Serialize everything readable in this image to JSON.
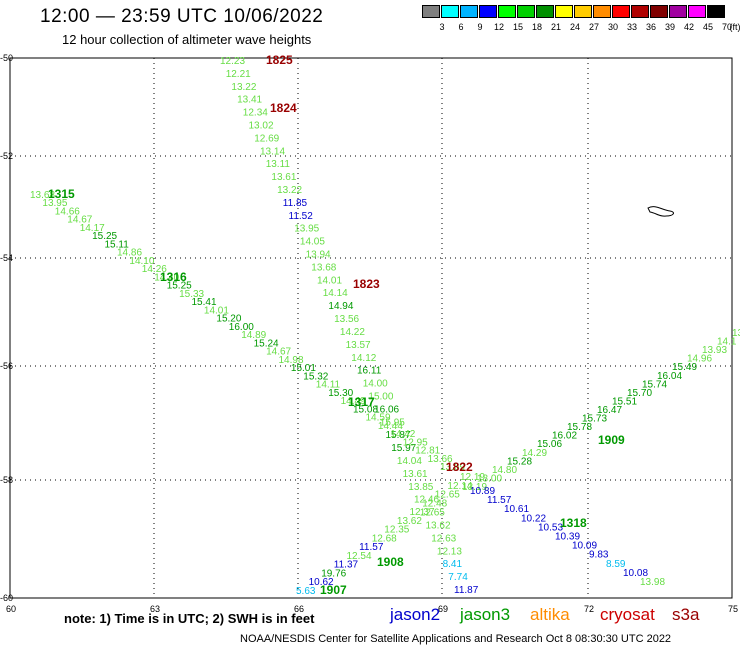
{
  "header": {
    "title": "12:00 — 23:59 UTC 10/06/2022",
    "subtitle": "12 hour collection of altimeter wave heights"
  },
  "legend": {
    "levels": [
      "3",
      "6",
      "9",
      "12",
      "15",
      "18",
      "21",
      "24",
      "27",
      "30",
      "33",
      "36",
      "39",
      "42",
      "45",
      "70"
    ],
    "unit": "(ft)",
    "colors": [
      "#7f7f7f",
      "#00ffff",
      "#00b4ff",
      "#0000ff",
      "#00ff00",
      "#00d000",
      "#009000",
      "#ffff00",
      "#ffcc00",
      "#ff8c00",
      "#ff0000",
      "#b00000",
      "#800000",
      "#a000a0",
      "#ff00ff",
      "#000000"
    ]
  },
  "map": {
    "x_ticks": [
      "60",
      "63",
      "66",
      "69",
      "72",
      "75"
    ],
    "y_ticks": [
      "-50",
      "-52",
      "-54",
      "-56",
      "-58",
      "-60"
    ],
    "colors": {
      "jason2": "#0000cc",
      "jason3": "#009900",
      "altika": "#ff8c00",
      "cryosat": "#cc0000",
      "s3a": "#990000",
      "light_green": "#66dd44",
      "cyan": "#00bbee"
    }
  },
  "tracks": [
    {
      "pass": "1825",
      "label_color": "#990000",
      "label_x": 266,
      "label_y": 64,
      "x0": 220,
      "y0": 64,
      "x1": 454,
      "y1": 593,
      "readings": [
        [
          "12.23",
          "light_green"
        ],
        [
          "12.21",
          "light_green"
        ],
        [
          "13.22",
          "light_green"
        ],
        [
          "13.41",
          "light_green"
        ],
        [
          "12.34",
          "light_green"
        ],
        [
          "13.02",
          "light_green"
        ],
        [
          "12.69",
          "light_green"
        ],
        [
          "13.14",
          "light_green"
        ],
        [
          "13.11",
          "light_green"
        ],
        [
          "13.61",
          "light_green"
        ],
        [
          "13.22",
          "light_green"
        ],
        [
          "11.85",
          "jason2"
        ],
        [
          "11.52",
          "jason2"
        ],
        [
          "13.95",
          "light_green"
        ],
        [
          "14.05",
          "light_green"
        ],
        [
          "13.94",
          "light_green"
        ],
        [
          "13.68",
          "light_green"
        ],
        [
          "14.01",
          "light_green"
        ],
        [
          "14.14",
          "light_green"
        ],
        [
          "14.94",
          "jason3"
        ],
        [
          "13.56",
          "light_green"
        ],
        [
          "14.22",
          "light_green"
        ],
        [
          "13.57",
          "light_green"
        ],
        [
          "14.12",
          "light_green"
        ],
        [
          "16.11",
          "jason3"
        ],
        [
          "14.00",
          "light_green"
        ],
        [
          "15.00",
          "light_green"
        ],
        [
          "16.06",
          "jason3"
        ],
        [
          "15.95",
          "light_green"
        ],
        [
          "15.87",
          "jason3"
        ],
        [
          "15.97",
          "jason3"
        ],
        [
          "14.04",
          "light_green"
        ],
        [
          "13.61",
          "light_green"
        ],
        [
          "13.85",
          "light_green"
        ],
        [
          "12.46",
          "light_green"
        ],
        [
          "12.65",
          "light_green"
        ],
        [
          "13.62",
          "light_green"
        ],
        [
          "12.63",
          "light_green"
        ],
        [
          "12.13",
          "light_green"
        ],
        [
          "8.41",
          "cyan"
        ],
        [
          "7.74",
          "cyan"
        ],
        [
          "11.87",
          "jason2"
        ]
      ]
    },
    {
      "pass": "1315",
      "label_color": "#009900",
      "label_x": 48,
      "label_y": 198,
      "x0": 30,
      "y0": 198,
      "x1": 440,
      "y1": 470,
      "readings": [
        [
          "13.68",
          "light_green"
        ],
        [
          "13.95",
          "light_green"
        ],
        [
          "14.66",
          "light_green"
        ],
        [
          "14.67",
          "light_green"
        ],
        [
          "14.17",
          "light_green"
        ],
        [
          "15.25",
          "jason3"
        ],
        [
          "15.11",
          "jason3"
        ],
        [
          "14.86",
          "light_green"
        ],
        [
          "14.10",
          "light_green"
        ],
        [
          "14.26",
          "light_green"
        ],
        [
          "14.40",
          "light_green"
        ],
        [
          "15.25",
          "jason3"
        ],
        [
          "15.33",
          "light_green"
        ],
        [
          "15.41",
          "jason3"
        ],
        [
          "14.01",
          "light_green"
        ],
        [
          "15.20",
          "jason3"
        ],
        [
          "16.00",
          "jason3"
        ],
        [
          "14.89",
          "light_green"
        ],
        [
          "15.24",
          "jason3"
        ],
        [
          "14.67",
          "light_green"
        ],
        [
          "14.98",
          "light_green"
        ],
        [
          "15.01",
          "jason3"
        ],
        [
          "15.32",
          "jason3"
        ],
        [
          "14.11",
          "light_green"
        ],
        [
          "15.30",
          "jason3"
        ],
        [
          "14.49",
          "light_green"
        ],
        [
          "15.08",
          "jason3"
        ],
        [
          "14.59",
          "light_green"
        ],
        [
          "14.44",
          "light_green"
        ],
        [
          "14.42",
          "light_green"
        ],
        [
          "12.95",
          "light_green"
        ],
        [
          "12.81",
          "light_green"
        ],
        [
          "13.66",
          "light_green"
        ],
        [
          "13.69",
          "light_green"
        ]
      ]
    },
    {
      "pass": "1909",
      "label_color": "#009900",
      "label_x": 598,
      "label_y": 444,
      "x0": 732,
      "y0": 336,
      "x1": 462,
      "y1": 490,
      "readings": [
        [
          "13",
          "light_green"
        ],
        [
          "14.1",
          "light_green"
        ],
        [
          "13.93",
          "light_green"
        ],
        [
          "14.96",
          "light_green"
        ],
        [
          "15.49",
          "jason3"
        ],
        [
          "16.04",
          "jason3"
        ],
        [
          "15.74",
          "jason3"
        ],
        [
          "15.70",
          "jason3"
        ],
        [
          "15.51",
          "jason3"
        ],
        [
          "16.47",
          "jason3"
        ],
        [
          "15.73",
          "jason3"
        ],
        [
          "15.78",
          "jason3"
        ],
        [
          "16.02",
          "jason3"
        ],
        [
          "15.06",
          "jason3"
        ],
        [
          "14.29",
          "light_green"
        ],
        [
          "15.28",
          "jason3"
        ],
        [
          "14.80",
          "light_green"
        ],
        [
          "13.00",
          "light_green"
        ],
        [
          "13.19",
          "light_green"
        ]
      ]
    },
    {
      "pass": "1318",
      "label_color": "#009900",
      "label_x": 560,
      "label_y": 527,
      "x0": 470,
      "y0": 494,
      "x1": 640,
      "y1": 585,
      "readings": [
        [
          "10.89",
          "jason2"
        ],
        [
          "11.57",
          "jason2"
        ],
        [
          "10.61",
          "jason2"
        ],
        [
          "10.22",
          "jason2"
        ],
        [
          "10.53",
          "jason2"
        ],
        [
          "10.39",
          "jason2"
        ],
        [
          "10.09",
          "jason2"
        ],
        [
          "9.83",
          "jason2"
        ],
        [
          "8.59",
          "cyan"
        ],
        [
          "10.08",
          "jason2"
        ],
        [
          "13.98",
          "light_green"
        ]
      ]
    },
    {
      "pass": "1907",
      "label_color": "#009900",
      "label_x": 320,
      "label_y": 594,
      "x0": 296,
      "y0": 594,
      "x1": 460,
      "y1": 480,
      "readings": [
        [
          "5.63",
          "cyan"
        ],
        [
          "10.62",
          "jason2"
        ],
        [
          "19.76",
          "jason3"
        ],
        [
          "11.37",
          "jason2"
        ],
        [
          "12.54",
          "light_green"
        ],
        [
          "11.57",
          "jason2"
        ],
        [
          "12.68",
          "light_green"
        ],
        [
          "12.35",
          "light_green"
        ],
        [
          "13.62",
          "light_green"
        ],
        [
          "12.37",
          "light_green"
        ],
        [
          "12.48",
          "light_green"
        ],
        [
          "12.65",
          "light_green"
        ],
        [
          "12.14",
          "light_green"
        ],
        [
          "12.19",
          "light_green"
        ]
      ]
    }
  ],
  "pass_labels": [
    {
      "text": "1824",
      "color": "#990000",
      "x": 270,
      "y": 112
    },
    {
      "text": "1823",
      "color": "#990000",
      "x": 353,
      "y": 288
    },
    {
      "text": "1316",
      "color": "#009900",
      "x": 160,
      "y": 281
    },
    {
      "text": "1317",
      "color": "#009900",
      "x": 348,
      "y": 406
    },
    {
      "text": "1822",
      "color": "#990000",
      "x": 446,
      "y": 471
    },
    {
      "text": "1908",
      "color": "#009900",
      "x": 377,
      "y": 566
    }
  ],
  "footer": {
    "note": "note:  1) Time is in UTC;  2) SWH is in feet",
    "missions": [
      {
        "name": "jason2",
        "color": "#0000cc",
        "x": 390
      },
      {
        "name": "jason3",
        "color": "#009900",
        "x": 460
      },
      {
        "name": "altika",
        "color": "#ff8c00",
        "x": 530
      },
      {
        "name": "cryosat",
        "color": "#cc0000",
        "x": 600
      },
      {
        "name": "s3a",
        "color": "#990000",
        "x": 672
      }
    ],
    "credit": "NOAA/NESDIS Center for Satellite Applications and Research    Oct  8 08:30:30 UTC 2022"
  }
}
